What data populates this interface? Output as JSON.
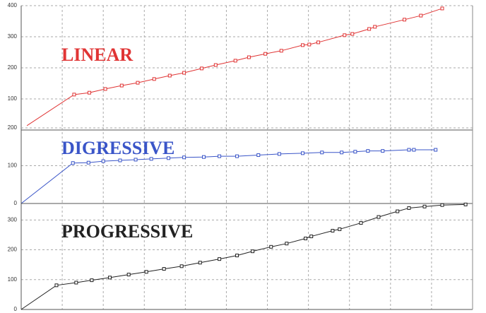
{
  "chart_data": [
    {
      "type": "line",
      "title": "LINEAR",
      "color": "#e03434",
      "grid": true,
      "xlim": [
        0,
        11
      ],
      "ylim": [
        0,
        400
      ],
      "yticks": [
        100,
        200,
        300,
        400
      ],
      "x": [
        0.14,
        1.29,
        1.66,
        2.05,
        2.45,
        2.84,
        3.24,
        3.62,
        3.97,
        4.4,
        4.74,
        5.22,
        5.55,
        5.95,
        6.34,
        6.86,
        7.02,
        7.24,
        7.88,
        8.07,
        8.48,
        8.62,
        9.34,
        9.74,
        10.26
      ],
      "values": [
        14,
        114,
        120,
        132,
        143,
        152,
        164,
        175,
        184,
        198,
        209,
        223,
        234,
        245,
        255,
        273,
        275,
        282,
        305,
        309,
        325,
        332,
        355,
        368,
        391
      ]
    },
    {
      "type": "line",
      "title": "DIGRESSIVE",
      "color": "#3a55c8",
      "grid": true,
      "xlim": [
        0,
        11
      ],
      "ylim": [
        0,
        200
      ],
      "yticks": [
        0,
        100,
        200
      ],
      "x": [
        0,
        1.26,
        1.64,
        2.0,
        2.41,
        2.79,
        3.17,
        3.59,
        3.97,
        4.45,
        4.83,
        5.26,
        5.78,
        6.29,
        6.86,
        7.33,
        7.81,
        8.14,
        8.45,
        8.81,
        9.45,
        9.57,
        10.1
      ],
      "values": [
        0,
        107,
        108,
        112,
        114,
        116,
        118,
        120,
        122,
        123,
        125,
        125,
        128,
        131,
        133,
        135,
        135,
        137,
        139,
        139,
        142,
        142,
        142
      ]
    },
    {
      "type": "line",
      "title": "PROGRESSIVE",
      "color": "#222222",
      "grid": true,
      "xlim": [
        0,
        11
      ],
      "ylim": [
        0,
        360
      ],
      "yticks": [
        0,
        100,
        200,
        300
      ],
      "x": [
        0,
        0.86,
        1.34,
        1.72,
        2.16,
        2.62,
        3.05,
        3.48,
        3.91,
        4.36,
        4.83,
        5.26,
        5.64,
        6.09,
        6.47,
        6.93,
        7.07,
        7.59,
        7.76,
        8.28,
        8.71,
        9.17,
        9.45,
        9.83,
        10.26,
        10.83
      ],
      "values": [
        0,
        81,
        90,
        98,
        107,
        117,
        126,
        136,
        145,
        157,
        169,
        181,
        195,
        210,
        221,
        238,
        245,
        264,
        269,
        290,
        310,
        329,
        340,
        345,
        350,
        352
      ]
    }
  ]
}
